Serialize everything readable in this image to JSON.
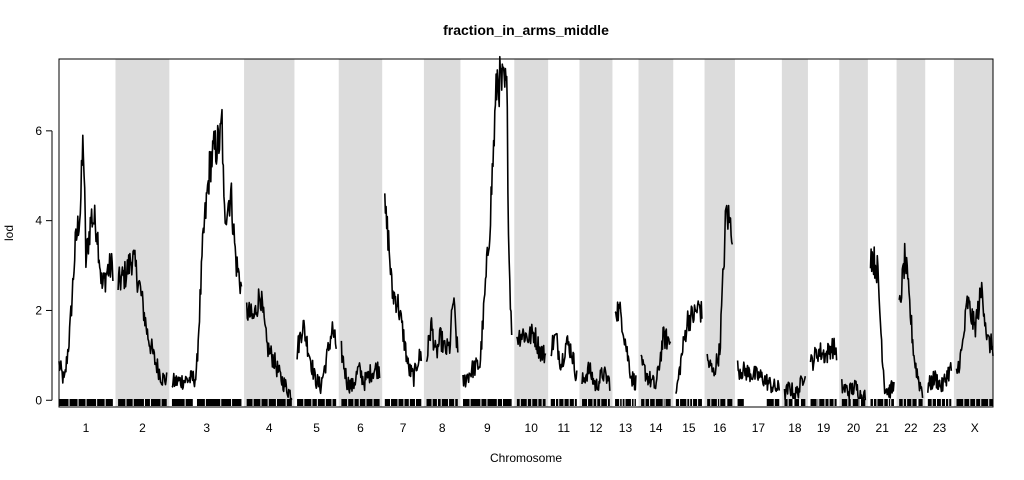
{
  "chart_data": {
    "type": "line",
    "title": "fraction_in_arms_middle",
    "xlabel": "Chromosome",
    "ylabel": "lod",
    "ylim": [
      -0.15,
      7.6
    ],
    "yticks": [
      0,
      2,
      4,
      6
    ],
    "grid": false,
    "legend": "none",
    "band_color": "#dcdcdc",
    "line_color": "#000000",
    "chromosomes": [
      {
        "label": "1",
        "len": 62,
        "shaded": false,
        "marker_gaps": [],
        "peaks": [
          [
            0.0,
            0.8
          ],
          [
            0.1,
            0.4
          ],
          [
            0.2,
            1.5
          ],
          [
            0.3,
            3.4
          ],
          [
            0.4,
            4.3
          ],
          [
            0.45,
            5.9
          ],
          [
            0.5,
            3.1
          ],
          [
            0.6,
            4.1
          ],
          [
            0.7,
            3.9
          ],
          [
            0.8,
            2.5
          ],
          [
            0.9,
            2.9
          ],
          [
            1.0,
            3.0
          ]
        ]
      },
      {
        "label": "2",
        "len": 56,
        "shaded": true,
        "marker_gaps": [],
        "peaks": [
          [
            0.0,
            2.6
          ],
          [
            0.15,
            2.8
          ],
          [
            0.3,
            3.2
          ],
          [
            0.45,
            2.5
          ],
          [
            0.6,
            1.5
          ],
          [
            0.75,
            0.9
          ],
          [
            0.9,
            0.5
          ],
          [
            1.0,
            0.45
          ]
        ]
      },
      {
        "label": "3",
        "len": 80,
        "shaded": false,
        "marker_gaps": [
          [
            0.3,
            0.36
          ]
        ],
        "peaks": [
          [
            0.0,
            0.4
          ],
          [
            0.2,
            0.45
          ],
          [
            0.35,
            0.5
          ],
          [
            0.45,
            3.6
          ],
          [
            0.55,
            5.3
          ],
          [
            0.62,
            5.6
          ],
          [
            0.7,
            5.8
          ],
          [
            0.72,
            6.3
          ],
          [
            0.75,
            4.1
          ],
          [
            0.85,
            4.6
          ],
          [
            0.92,
            3.1
          ],
          [
            1.0,
            2.5
          ]
        ]
      },
      {
        "label": "4",
        "len": 52,
        "shaded": true,
        "marker_gaps": [],
        "peaks": [
          [
            0.0,
            2.0
          ],
          [
            0.15,
            1.8
          ],
          [
            0.3,
            2.4
          ],
          [
            0.45,
            1.2
          ],
          [
            0.6,
            0.9
          ],
          [
            0.75,
            0.5
          ],
          [
            0.9,
            0.25
          ],
          [
            1.0,
            0.1
          ]
        ]
      },
      {
        "label": "5",
        "len": 45,
        "shaded": false,
        "marker_gaps": [],
        "peaks": [
          [
            0.0,
            1.1
          ],
          [
            0.15,
            1.7
          ],
          [
            0.3,
            1.1
          ],
          [
            0.45,
            0.5
          ],
          [
            0.6,
            0.3
          ],
          [
            0.75,
            0.9
          ],
          [
            0.9,
            1.6
          ],
          [
            1.0,
            1.2
          ]
        ]
      },
      {
        "label": "6",
        "len": 44,
        "shaded": true,
        "marker_gaps": [],
        "peaks": [
          [
            0.0,
            1.1
          ],
          [
            0.15,
            0.4
          ],
          [
            0.3,
            0.3
          ],
          [
            0.45,
            0.7
          ],
          [
            0.6,
            0.4
          ],
          [
            0.75,
            0.6
          ],
          [
            0.9,
            0.7
          ],
          [
            1.0,
            0.7
          ]
        ]
      },
      {
        "label": "7",
        "len": 42,
        "shaded": false,
        "marker_gaps": [],
        "peaks": [
          [
            0.0,
            4.2
          ],
          [
            0.1,
            3.6
          ],
          [
            0.2,
            2.4
          ],
          [
            0.35,
            2.2
          ],
          [
            0.5,
            1.5
          ],
          [
            0.65,
            0.7
          ],
          [
            0.8,
            0.5
          ],
          [
            0.9,
            0.9
          ],
          [
            1.0,
            1.0
          ]
        ]
      },
      {
        "label": "8",
        "len": 36,
        "shaded": true,
        "marker_gaps": [],
        "peaks": [
          [
            0.0,
            0.9
          ],
          [
            0.15,
            1.7
          ],
          [
            0.3,
            1.0
          ],
          [
            0.45,
            1.4
          ],
          [
            0.6,
            1.1
          ],
          [
            0.75,
            1.2
          ],
          [
            0.85,
            2.3
          ],
          [
            1.0,
            1.0
          ]
        ]
      },
      {
        "label": "9",
        "len": 56,
        "shaded": false,
        "marker_gaps": [],
        "peaks": [
          [
            0.0,
            0.4
          ],
          [
            0.2,
            0.7
          ],
          [
            0.35,
            0.8
          ],
          [
            0.55,
            3.9
          ],
          [
            0.7,
            7.2
          ],
          [
            0.8,
            7.0
          ],
          [
            0.9,
            6.9
          ],
          [
            0.95,
            3.0
          ],
          [
            1.0,
            1.6
          ]
        ]
      },
      {
        "label": "10",
        "len": 33,
        "shaded": true,
        "marker_gaps": [],
        "peaks": [
          [
            0.0,
            1.4
          ],
          [
            0.2,
            1.5
          ],
          [
            0.4,
            1.4
          ],
          [
            0.6,
            1.5
          ],
          [
            0.8,
            1.1
          ],
          [
            1.0,
            1.0
          ]
        ]
      },
      {
        "label": "11",
        "len": 30,
        "shaded": false,
        "marker_gaps": [],
        "peaks": [
          [
            0.0,
            1.2
          ],
          [
            0.2,
            1.4
          ],
          [
            0.4,
            0.8
          ],
          [
            0.6,
            1.3
          ],
          [
            0.8,
            1.1
          ],
          [
            1.0,
            0.5
          ]
        ]
      },
      {
        "label": "12",
        "len": 32,
        "shaded": true,
        "marker_gaps": [],
        "peaks": [
          [
            0.0,
            0.4
          ],
          [
            0.25,
            0.7
          ],
          [
            0.5,
            0.3
          ],
          [
            0.75,
            0.6
          ],
          [
            1.0,
            0.4
          ]
        ]
      },
      {
        "label": "13",
        "len": 24,
        "shaded": false,
        "marker_gaps": [],
        "peaks": [
          [
            0.0,
            2.1
          ],
          [
            0.3,
            1.9
          ],
          [
            0.6,
            1.0
          ],
          [
            0.8,
            0.5
          ],
          [
            1.0,
            0.4
          ]
        ]
      },
      {
        "label": "14",
        "len": 34,
        "shaded": true,
        "marker_gaps": [],
        "peaks": [
          [
            0.0,
            0.8
          ],
          [
            0.25,
            0.5
          ],
          [
            0.5,
            0.3
          ],
          [
            0.75,
            1.4
          ],
          [
            1.0,
            1.3
          ]
        ]
      },
      {
        "label": "15",
        "len": 30,
        "shaded": false,
        "marker_gaps": [],
        "peaks": [
          [
            0.0,
            0.1
          ],
          [
            0.2,
            0.9
          ],
          [
            0.45,
            1.8
          ],
          [
            0.7,
            1.9
          ],
          [
            0.9,
            2.1
          ],
          [
            1.0,
            1.9
          ]
        ]
      },
      {
        "label": "16",
        "len": 29,
        "shaded": true,
        "marker_gaps": [],
        "peaks": [
          [
            0.0,
            0.9
          ],
          [
            0.25,
            0.6
          ],
          [
            0.5,
            1.1
          ],
          [
            0.75,
            4.2
          ],
          [
            1.0,
            3.8
          ]
        ]
      },
      {
        "label": "17",
        "len": 48,
        "shaded": false,
        "marker_gaps": [
          [
            0.15,
            0.7
          ]
        ],
        "peaks": [
          [
            0.0,
            0.7
          ],
          [
            0.6,
            0.5
          ],
          [
            0.85,
            0.3
          ],
          [
            1.0,
            0.25
          ]
        ]
      },
      {
        "label": "18",
        "len": 24,
        "shaded": true,
        "marker_gaps": [],
        "peaks": [
          [
            0.0,
            0.1
          ],
          [
            0.25,
            0.3
          ],
          [
            0.5,
            0.1
          ],
          [
            0.75,
            0.3
          ],
          [
            1.0,
            0.7
          ]
        ]
      },
      {
        "label": "19",
        "len": 30,
        "shaded": false,
        "marker_gaps": [],
        "peaks": [
          [
            0.0,
            0.8
          ],
          [
            0.3,
            1.1
          ],
          [
            0.6,
            1.0
          ],
          [
            0.8,
            1.2
          ],
          [
            1.0,
            1.1
          ]
        ]
      },
      {
        "label": "20",
        "len": 27,
        "shaded": true,
        "marker_gaps": [],
        "peaks": [
          [
            0.0,
            0.3
          ],
          [
            0.3,
            0.2
          ],
          [
            0.6,
            0.3
          ],
          [
            0.8,
            0.1
          ],
          [
            1.0,
            0.1
          ]
        ]
      },
      {
        "label": "21",
        "len": 27,
        "shaded": false,
        "marker_gaps": [],
        "peaks": [
          [
            0.0,
            3.3
          ],
          [
            0.15,
            3.1
          ],
          [
            0.3,
            2.9
          ],
          [
            0.45,
            1.5
          ],
          [
            0.6,
            0.3
          ],
          [
            0.8,
            0.2
          ],
          [
            1.0,
            0.3
          ]
        ]
      },
      {
        "label": "22",
        "len": 27,
        "shaded": true,
        "marker_gaps": [],
        "peaks": [
          [
            0.0,
            2.0
          ],
          [
            0.25,
            3.2
          ],
          [
            0.45,
            2.1
          ],
          [
            0.65,
            0.9
          ],
          [
            0.85,
            0.4
          ],
          [
            1.0,
            0.2
          ]
        ]
      },
      {
        "label": "23",
        "len": 27,
        "shaded": false,
        "marker_gaps": [],
        "peaks": [
          [
            0.0,
            0.3
          ],
          [
            0.3,
            0.5
          ],
          [
            0.6,
            0.3
          ],
          [
            0.85,
            0.6
          ],
          [
            1.0,
            0.7
          ]
        ]
      },
      {
        "label": "X",
        "len": 42,
        "shaded": true,
        "marker_gaps": [],
        "peaks": [
          [
            0.0,
            0.6
          ],
          [
            0.15,
            1.1
          ],
          [
            0.3,
            2.2
          ],
          [
            0.5,
            1.6
          ],
          [
            0.7,
            2.5
          ],
          [
            0.85,
            1.3
          ],
          [
            1.0,
            1.2
          ]
        ]
      }
    ]
  }
}
